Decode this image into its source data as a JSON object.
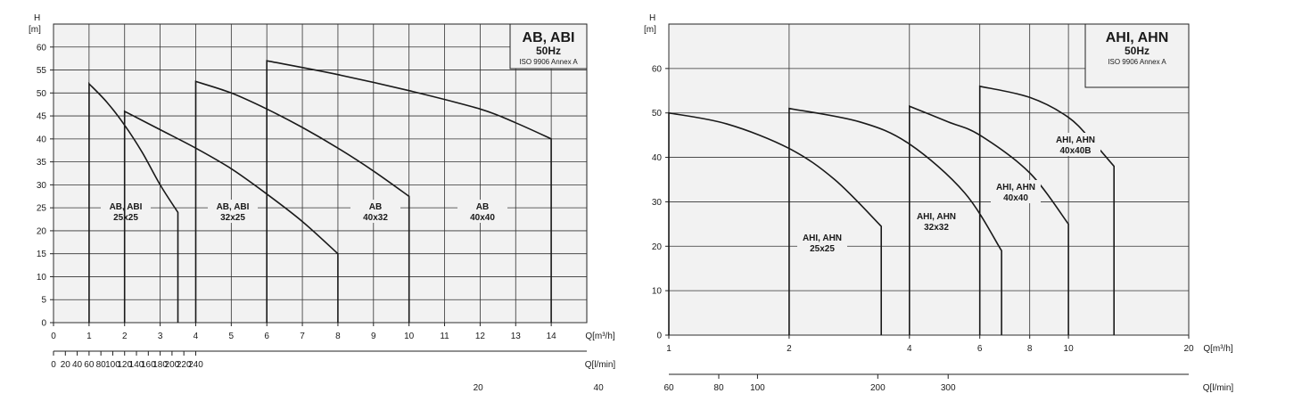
{
  "chart_data": [
    {
      "type": "line",
      "title": "AB, ABI",
      "subtitle": "50Hz",
      "note": "ISO 9906 Annex A",
      "ylabel": "H",
      "yunit": "[m]",
      "xlabel": "Q[m³/h]",
      "x2label": "Q[l/min]",
      "xlim": [
        0,
        15
      ],
      "ylim": [
        0,
        65
      ],
      "x_ticks": [
        "0",
        "1",
        "2",
        "3",
        "4",
        "5",
        "6",
        "7",
        "8",
        "9",
        "10",
        "11",
        "12",
        "13",
        "14"
      ],
      "y_ticks": [
        "0",
        "5",
        "10",
        "15",
        "20",
        "25",
        "30",
        "35",
        "40",
        "45",
        "50",
        "55",
        "60"
      ],
      "x2_ticks": [
        "0",
        "20",
        "40",
        "60",
        "80",
        "100",
        "120",
        "140",
        "160",
        "180",
        "200",
        "220",
        "240"
      ],
      "grid": true,
      "series": [
        {
          "label": [
            "AB, ABI",
            "25x25"
          ],
          "x": [
            1,
            1.5,
            2,
            2.5,
            3,
            3.5,
            3.5
          ],
          "y": [
            52,
            48,
            43,
            37,
            30,
            24,
            0
          ]
        },
        {
          "label": [
            "AB, ABI",
            "32x25"
          ],
          "x": [
            2,
            3,
            4,
            5,
            6,
            7,
            8,
            8
          ],
          "y": [
            46,
            42,
            38,
            33.5,
            28,
            22,
            15,
            0
          ]
        },
        {
          "label": [
            "AB",
            "40x32"
          ],
          "x": [
            4,
            5,
            6,
            7,
            8,
            9,
            10,
            10
          ],
          "y": [
            52.5,
            50,
            46.5,
            42.5,
            38,
            33,
            27.5,
            0
          ]
        },
        {
          "label": [
            "AB",
            "40x40"
          ],
          "x": [
            6,
            8,
            10,
            12,
            13,
            14,
            14
          ],
          "y": [
            57,
            54,
            50.5,
            46.5,
            43.5,
            40,
            0
          ]
        }
      ]
    },
    {
      "type": "line",
      "title": "AHI, AHN",
      "subtitle": "50Hz",
      "note": "ISO 9906 Annex A",
      "ylabel": "H",
      "yunit": "[m]",
      "xlabel": "Q[m³/h]",
      "x2label": "Q[l/min]",
      "xscale": "log",
      "xlim": [
        1,
        20
      ],
      "ylim": [
        0,
        70
      ],
      "x_ticks": [
        "1",
        "2",
        "4",
        "6",
        "8",
        "10",
        "20"
      ],
      "y_ticks": [
        "0",
        "10",
        "20",
        "30",
        "40",
        "50",
        "60"
      ],
      "x2_ticks": [
        "20",
        "40",
        "60",
        "80",
        "100",
        "200",
        "300"
      ],
      "grid": true,
      "series": [
        {
          "label": [
            "AHI, AHN",
            "25x25"
          ],
          "x": [
            1,
            1.4,
            2,
            2.6,
            3.4,
            3.4
          ],
          "y": [
            50,
            47.5,
            42,
            35,
            24.5,
            0
          ]
        },
        {
          "label": [
            "AHI, AHN",
            "32x32"
          ],
          "x": [
            2,
            3,
            4,
            5.5,
            6.8,
            6.8
          ],
          "y": [
            51,
            48,
            43,
            32,
            19,
            0
          ]
        },
        {
          "label": [
            "AHI, AHN",
            "40x40"
          ],
          "x": [
            4,
            5,
            6,
            8,
            10,
            10
          ],
          "y": [
            51.5,
            48,
            45,
            36.5,
            25,
            0
          ]
        },
        {
          "label": [
            "AHI, AHN",
            "40x40B"
          ],
          "x": [
            6,
            8,
            10,
            11.5,
            13,
            13
          ],
          "y": [
            56,
            53.5,
            49,
            43.5,
            38,
            0
          ]
        }
      ]
    }
  ]
}
